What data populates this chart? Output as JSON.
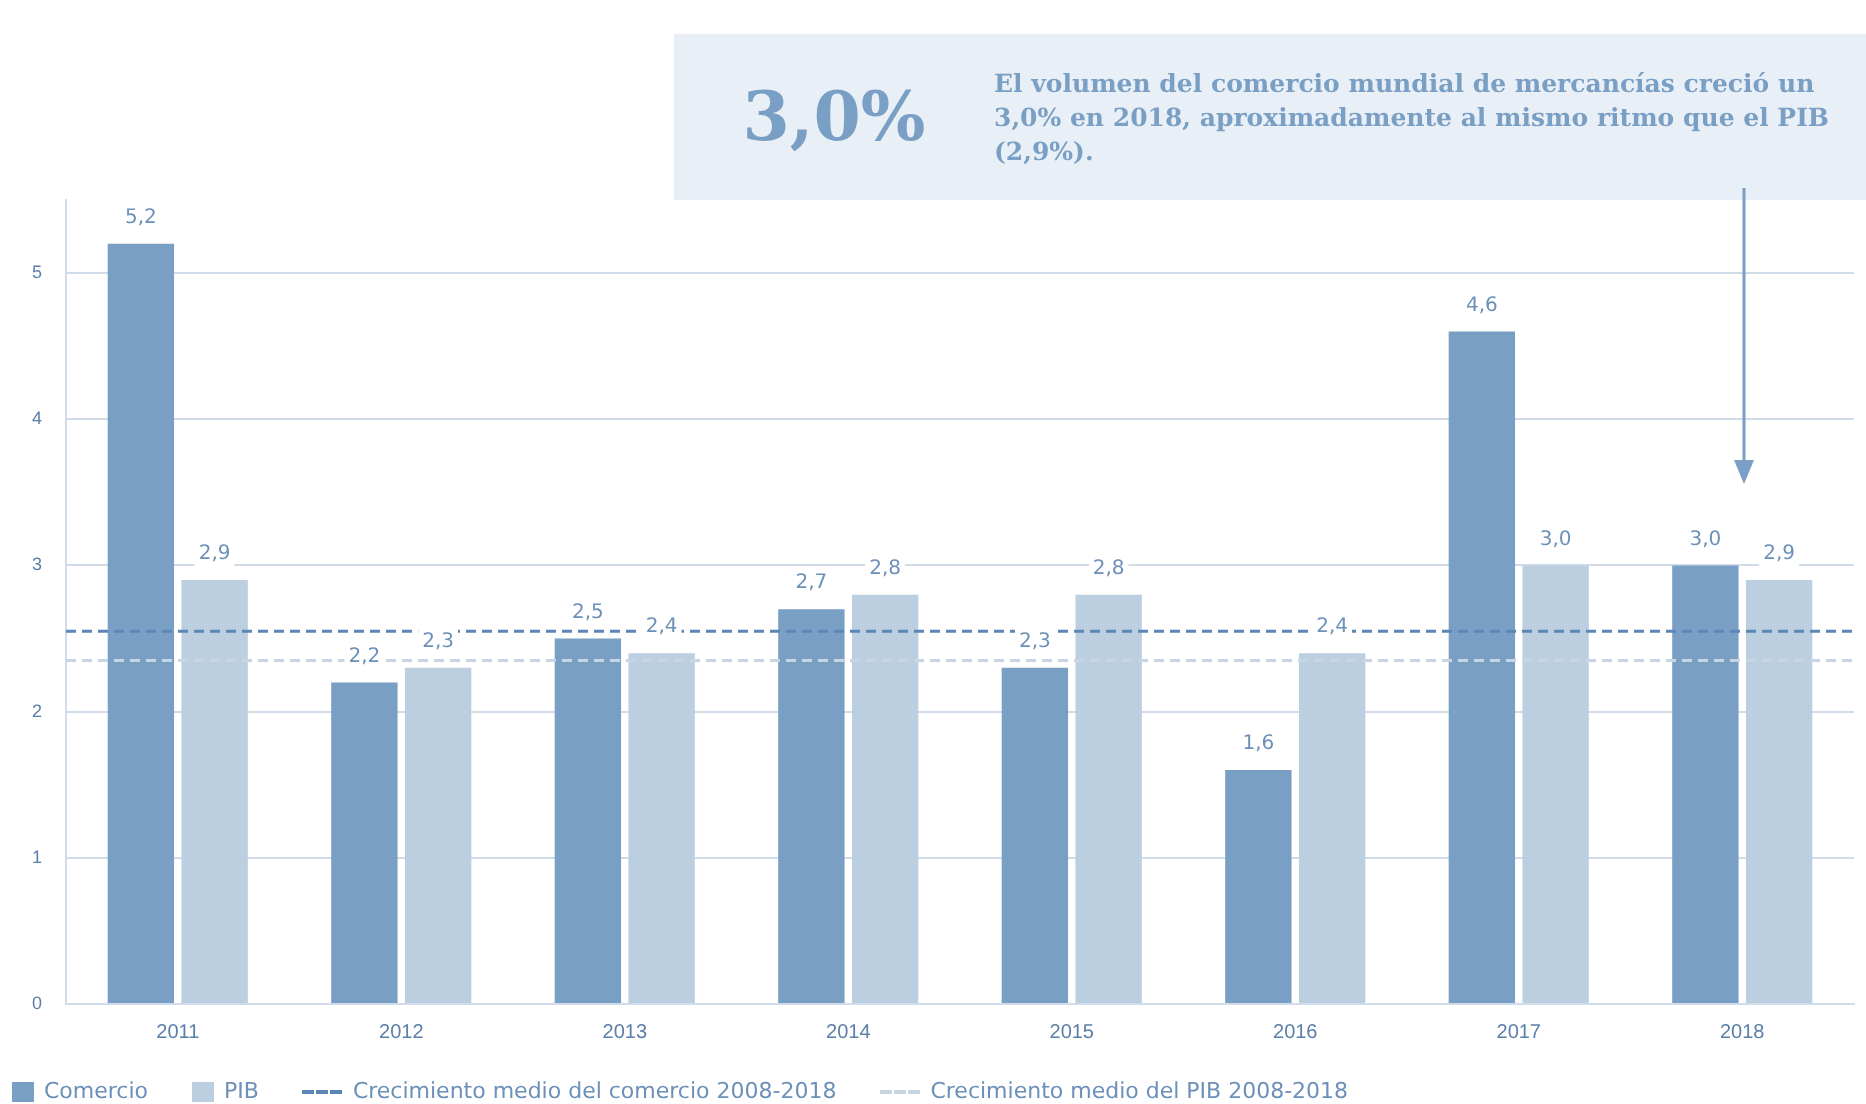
{
  "chart_data": {
    "type": "bar",
    "categories": [
      "2011",
      "2012",
      "2013",
      "2014",
      "2015",
      "2016",
      "2017",
      "2018"
    ],
    "series": [
      {
        "name": "Comercio",
        "color": "#7a9fc4",
        "values": [
          5.2,
          2.2,
          2.5,
          2.7,
          2.3,
          1.6,
          4.6,
          3.0
        ],
        "value_labels": [
          "5,2",
          "2,2",
          "2,5",
          "2,7",
          "2,3",
          "1,6",
          "4,6",
          "3,0"
        ]
      },
      {
        "name": "PIB",
        "color": "#bccfe0",
        "values": [
          2.9,
          2.3,
          2.4,
          2.8,
          2.8,
          2.4,
          3.0,
          2.9
        ],
        "value_labels": [
          "2,9",
          "2,3",
          "2,4",
          "2,8",
          "2,8",
          "2,4",
          "3,0",
          "2,9"
        ]
      }
    ],
    "ylim": [
      0,
      5.5
    ],
    "yticks": [
      0,
      1,
      2,
      3,
      4,
      5
    ],
    "grid": "y",
    "legend": "bottom left",
    "ref_lines": [
      {
        "axis": "y",
        "value": 2.55,
        "label": "Crecimiento medio del comercio 2008-2018",
        "color": "#5b86b8",
        "line_style": "dashed"
      },
      {
        "axis": "y",
        "value": 2.35,
        "label": "Crecimiento medio del PIB 2008-2018",
        "color": "#c8d6e4",
        "line_style": "dashed"
      }
    ],
    "annotations": [
      "3,0%",
      "El volumen del comercio mundial de mercancías creció un 3,0% en 2018, aproximadamente al mismo ritmo que el PIB (2,9%)."
    ]
  }
}
